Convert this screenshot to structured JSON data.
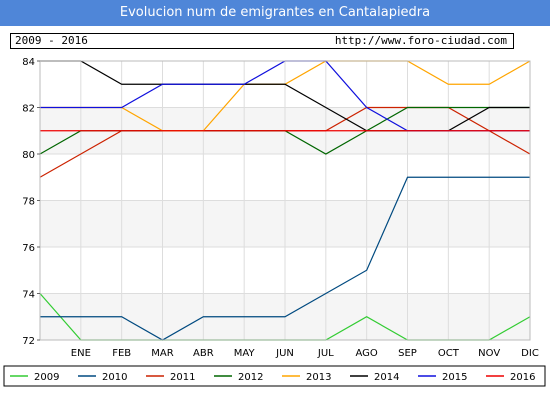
{
  "header": {
    "title": "Evolucion num de emigrantes en Cantalapiedra",
    "period": "2009 - 2016",
    "url": "http://www.foro-ciudad.com"
  },
  "chart_data": {
    "type": "line",
    "title": "Evolucion num de emigrantes en Cantalapiedra",
    "xlabel": "",
    "ylabel": "",
    "categories": [
      "",
      "ENE",
      "FEB",
      "MAR",
      "ABR",
      "MAY",
      "JUN",
      "JUL",
      "AGO",
      "SEP",
      "OCT",
      "NOV",
      "DIC"
    ],
    "y_ticks": [
      72,
      74,
      76,
      78,
      80,
      82,
      84
    ],
    "ylim": [
      72,
      84
    ],
    "grid": true,
    "legend_position": "bottom",
    "series": [
      {
        "name": "2009",
        "color": "#33cc33",
        "values": [
          74,
          72,
          72,
          72,
          72,
          72,
          72,
          72,
          73,
          72,
          72,
          72,
          73
        ]
      },
      {
        "name": "2010",
        "color": "#004a80",
        "values": [
          73,
          73,
          73,
          72,
          73,
          73,
          73,
          74,
          75,
          79,
          79,
          79,
          79
        ]
      },
      {
        "name": "2011",
        "color": "#cc2200",
        "values": [
          79,
          80,
          81,
          81,
          81,
          81,
          81,
          81,
          82,
          82,
          82,
          81,
          80
        ]
      },
      {
        "name": "2012",
        "color": "#006600",
        "values": [
          80,
          81,
          81,
          81,
          81,
          81,
          81,
          80,
          81,
          82,
          82,
          82,
          82
        ]
      },
      {
        "name": "2013",
        "color": "#ffa500",
        "values": [
          82,
          82,
          82,
          81,
          81,
          83,
          83,
          84,
          84,
          84,
          83,
          83,
          84
        ]
      },
      {
        "name": "2014",
        "color": "#000000",
        "values": [
          84,
          84,
          83,
          83,
          83,
          83,
          83,
          82,
          81,
          81,
          81,
          82,
          82
        ]
      },
      {
        "name": "2015",
        "color": "#1010dd",
        "values": [
          82,
          82,
          82,
          83,
          83,
          83,
          84,
          84,
          82,
          81,
          81,
          81,
          81
        ]
      },
      {
        "name": "2016",
        "color": "#ee0000",
        "values": [
          81,
          81,
          81,
          81,
          81,
          81,
          81,
          81,
          81,
          81,
          81,
          81,
          81
        ]
      }
    ]
  }
}
